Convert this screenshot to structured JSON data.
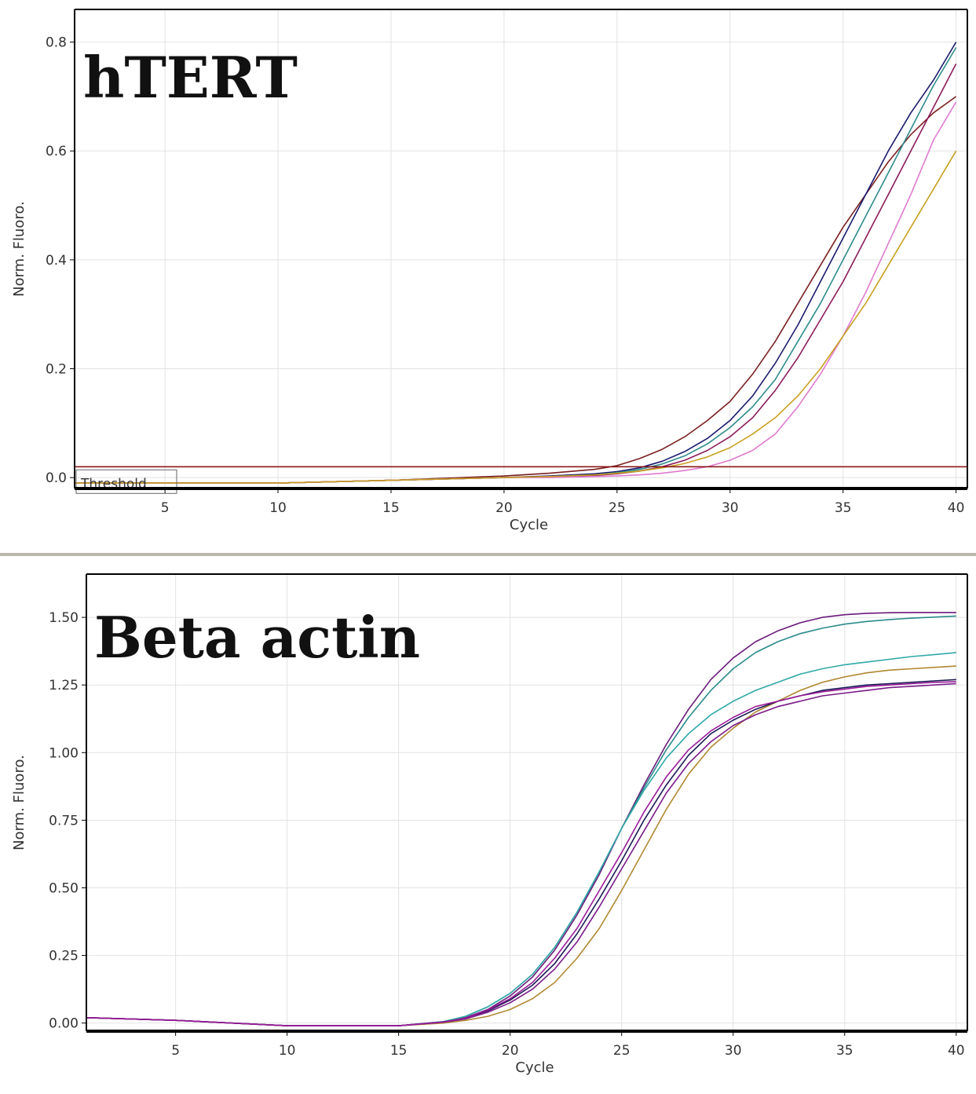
{
  "chart_data": [
    {
      "type": "line",
      "title": "hTERT",
      "xlabel": "Cycle",
      "ylabel": "Norm. Fluoro.",
      "xlim": [
        1,
        40.5
      ],
      "ylim": [
        -0.02,
        0.86
      ],
      "xticks": [
        5,
        10,
        15,
        20,
        25,
        30,
        35,
        40
      ],
      "yticks": [
        0,
        0.2,
        0.4,
        0.6,
        0.8
      ],
      "ytick_labels": [
        "0.0",
        "0.2",
        "0.4",
        "0.6",
        "0.8"
      ],
      "grid": true,
      "threshold": {
        "label": "Threshold",
        "value": 0.02,
        "color": "#8b1a1a"
      },
      "series": [
        {
          "color": "#7a1f1f",
          "x": [
            1,
            5,
            10,
            15,
            20,
            22,
            24,
            25,
            26,
            27,
            28,
            29,
            30,
            31,
            32,
            33,
            34,
            35,
            36,
            37,
            38,
            39,
            40
          ],
          "y": [
            -0.01,
            -0.01,
            -0.01,
            -0.005,
            0.003,
            0.008,
            0.015,
            0.022,
            0.035,
            0.052,
            0.075,
            0.105,
            0.14,
            0.19,
            0.25,
            0.32,
            0.39,
            0.46,
            0.52,
            0.58,
            0.63,
            0.67,
            0.7
          ]
        },
        {
          "color": "#1a1a6e",
          "x": [
            1,
            5,
            10,
            15,
            20,
            22,
            24,
            25,
            26,
            27,
            28,
            29,
            30,
            31,
            32,
            33,
            34,
            35,
            36,
            37,
            38,
            39,
            40
          ],
          "y": [
            -0.01,
            -0.01,
            -0.01,
            -0.005,
            0.0,
            0.003,
            0.007,
            0.011,
            0.018,
            0.03,
            0.048,
            0.072,
            0.105,
            0.15,
            0.21,
            0.28,
            0.36,
            0.44,
            0.52,
            0.6,
            0.67,
            0.73,
            0.8
          ]
        },
        {
          "color": "#2e8b8b",
          "x": [
            1,
            5,
            10,
            15,
            20,
            22,
            24,
            25,
            26,
            27,
            28,
            29,
            30,
            31,
            32,
            33,
            34,
            35,
            36,
            37,
            38,
            39,
            40
          ],
          "y": [
            -0.01,
            -0.01,
            -0.01,
            -0.005,
            0.0,
            0.002,
            0.005,
            0.009,
            0.015,
            0.025,
            0.04,
            0.062,
            0.092,
            0.13,
            0.18,
            0.25,
            0.32,
            0.4,
            0.48,
            0.56,
            0.64,
            0.72,
            0.79
          ]
        },
        {
          "color": "#8b1a5a",
          "x": [
            1,
            5,
            10,
            15,
            20,
            22,
            24,
            25,
            26,
            27,
            28,
            29,
            30,
            31,
            32,
            33,
            34,
            35,
            36,
            37,
            38,
            39,
            40
          ],
          "y": [
            -0.01,
            -0.01,
            -0.01,
            -0.005,
            0.0,
            0.002,
            0.004,
            0.007,
            0.012,
            0.02,
            0.032,
            0.05,
            0.075,
            0.11,
            0.16,
            0.22,
            0.29,
            0.36,
            0.44,
            0.52,
            0.6,
            0.68,
            0.76
          ]
        },
        {
          "color": "#e07ad0",
          "x": [
            1,
            5,
            10,
            15,
            20,
            22,
            24,
            25,
            26,
            27,
            28,
            29,
            30,
            31,
            32,
            33,
            34,
            35,
            36,
            37,
            38,
            39,
            40
          ],
          "y": [
            -0.01,
            -0.01,
            -0.01,
            -0.005,
            0.0,
            0.0,
            0.002,
            0.003,
            0.005,
            0.008,
            0.013,
            0.02,
            0.032,
            0.05,
            0.08,
            0.13,
            0.19,
            0.26,
            0.34,
            0.43,
            0.52,
            0.62,
            0.69
          ]
        },
        {
          "color": "#c8a020",
          "x": [
            1,
            5,
            10,
            15,
            20,
            22,
            24,
            25,
            26,
            27,
            28,
            29,
            30,
            31,
            32,
            33,
            34,
            35,
            36,
            37,
            38,
            39,
            40
          ],
          "y": [
            -0.01,
            -0.01,
            -0.01,
            -0.005,
            0.0,
            0.002,
            0.005,
            0.008,
            0.012,
            0.018,
            0.026,
            0.038,
            0.055,
            0.08,
            0.11,
            0.15,
            0.2,
            0.26,
            0.32,
            0.39,
            0.46,
            0.53,
            0.6
          ]
        }
      ]
    },
    {
      "type": "line",
      "title": "Beta actin",
      "xlabel": "Cycle",
      "ylabel": "Norm. Fluoro.",
      "xlim": [
        1,
        40.5
      ],
      "ylim": [
        -0.03,
        1.66
      ],
      "xticks": [
        5,
        10,
        15,
        20,
        25,
        30,
        35,
        40
      ],
      "yticks": [
        0,
        0.25,
        0.5,
        0.75,
        1.0,
        1.25,
        1.5
      ],
      "ytick_labels": [
        "0.00",
        "0.25",
        "0.50",
        "0.75",
        "1.00",
        "1.25",
        "1.50"
      ],
      "grid": true,
      "series": [
        {
          "color": "#6a1a7a",
          "x": [
            1,
            5,
            10,
            15,
            17,
            18,
            19,
            20,
            21,
            22,
            23,
            24,
            25,
            26,
            27,
            28,
            29,
            30,
            31,
            32,
            33,
            34,
            35,
            36,
            37,
            38,
            39,
            40
          ],
          "y": [
            0.02,
            0.01,
            -0.01,
            -0.01,
            0.005,
            0.02,
            0.05,
            0.1,
            0.17,
            0.27,
            0.4,
            0.55,
            0.72,
            0.88,
            1.03,
            1.16,
            1.27,
            1.35,
            1.41,
            1.45,
            1.48,
            1.5,
            1.51,
            1.515,
            1.517,
            1.518,
            1.518,
            1.518
          ]
        },
        {
          "color": "#2a8a8a",
          "x": [
            1,
            5,
            10,
            15,
            17,
            18,
            19,
            20,
            21,
            22,
            23,
            24,
            25,
            26,
            27,
            28,
            29,
            30,
            31,
            32,
            33,
            34,
            35,
            36,
            37,
            38,
            39,
            40
          ],
          "y": [
            0.02,
            0.01,
            -0.01,
            -0.01,
            0.005,
            0.025,
            0.06,
            0.11,
            0.18,
            0.28,
            0.41,
            0.56,
            0.72,
            0.87,
            1.01,
            1.13,
            1.23,
            1.31,
            1.37,
            1.41,
            1.44,
            1.46,
            1.475,
            1.485,
            1.492,
            1.497,
            1.501,
            1.505
          ]
        },
        {
          "color": "#30a8a8",
          "x": [
            1,
            5,
            10,
            15,
            17,
            18,
            19,
            20,
            21,
            22,
            23,
            24,
            25,
            26,
            27,
            28,
            29,
            30,
            31,
            32,
            33,
            34,
            35,
            36,
            37,
            38,
            39,
            40
          ],
          "y": [
            0.02,
            0.01,
            -0.01,
            -0.01,
            0.005,
            0.025,
            0.06,
            0.11,
            0.18,
            0.28,
            0.41,
            0.56,
            0.72,
            0.86,
            0.98,
            1.07,
            1.14,
            1.19,
            1.23,
            1.26,
            1.29,
            1.31,
            1.325,
            1.335,
            1.345,
            1.355,
            1.362,
            1.37
          ]
        },
        {
          "color": "#b08830",
          "x": [
            1,
            5,
            10,
            15,
            17,
            18,
            19,
            20,
            21,
            22,
            23,
            24,
            25,
            26,
            27,
            28,
            29,
            30,
            31,
            32,
            33,
            34,
            35,
            36,
            37,
            38,
            39,
            40
          ],
          "y": [
            0.02,
            0.01,
            -0.01,
            -0.01,
            0.0,
            0.01,
            0.025,
            0.05,
            0.09,
            0.15,
            0.24,
            0.35,
            0.49,
            0.64,
            0.79,
            0.92,
            1.02,
            1.09,
            1.15,
            1.19,
            1.23,
            1.26,
            1.28,
            1.295,
            1.305,
            1.31,
            1.315,
            1.32
          ]
        },
        {
          "color": "#1a1a55",
          "x": [
            1,
            5,
            10,
            15,
            17,
            18,
            19,
            20,
            21,
            22,
            23,
            24,
            25,
            26,
            27,
            28,
            29,
            30,
            31,
            32,
            33,
            34,
            35,
            36,
            37,
            38,
            39,
            40
          ],
          "y": [
            0.02,
            0.01,
            -0.01,
            -0.01,
            0.004,
            0.018,
            0.045,
            0.085,
            0.14,
            0.22,
            0.33,
            0.46,
            0.6,
            0.75,
            0.88,
            0.99,
            1.07,
            1.12,
            1.16,
            1.19,
            1.21,
            1.23,
            1.24,
            1.25,
            1.255,
            1.26,
            1.265,
            1.27
          ]
        },
        {
          "color": "#7a1a8a",
          "x": [
            1,
            5,
            10,
            15,
            17,
            18,
            19,
            20,
            21,
            22,
            23,
            24,
            25,
            26,
            27,
            28,
            29,
            30,
            31,
            32,
            33,
            34,
            35,
            36,
            37,
            38,
            39,
            40
          ],
          "y": [
            0.02,
            0.01,
            -0.01,
            -0.01,
            0.003,
            0.015,
            0.04,
            0.075,
            0.125,
            0.2,
            0.3,
            0.43,
            0.57,
            0.71,
            0.85,
            0.96,
            1.04,
            1.1,
            1.14,
            1.17,
            1.19,
            1.21,
            1.22,
            1.23,
            1.24,
            1.245,
            1.25,
            1.255
          ]
        },
        {
          "color": "#9a1a9a",
          "x": [
            1,
            5,
            10,
            15,
            17,
            18,
            19,
            20,
            21,
            22,
            23,
            24,
            25,
            26,
            27,
            28,
            29,
            30,
            31,
            32,
            33,
            34,
            35,
            36,
            37,
            38,
            39,
            40
          ],
          "y": [
            0.02,
            0.01,
            -0.01,
            -0.01,
            0.004,
            0.018,
            0.048,
            0.09,
            0.15,
            0.24,
            0.35,
            0.49,
            0.63,
            0.78,
            0.91,
            1.01,
            1.08,
            1.13,
            1.17,
            1.19,
            1.21,
            1.225,
            1.235,
            1.245,
            1.25,
            1.255,
            1.26,
            1.262
          ]
        }
      ]
    }
  ]
}
